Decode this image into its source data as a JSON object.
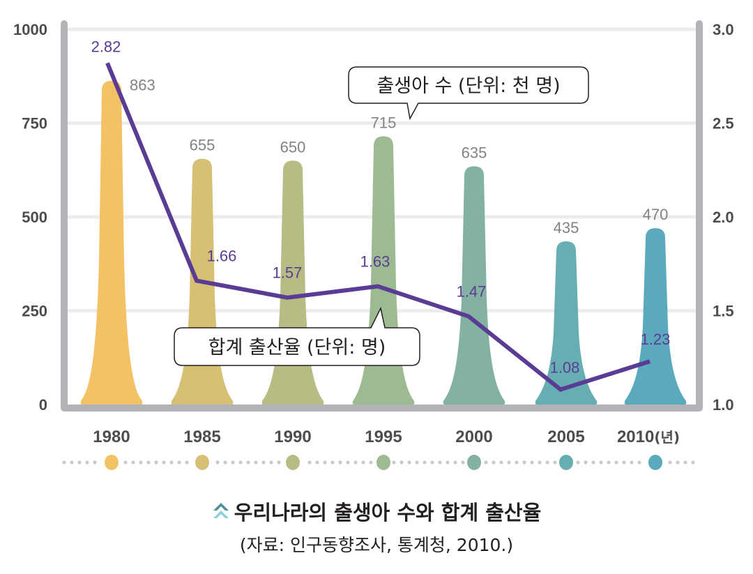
{
  "chart_data": {
    "type": "bar+line",
    "title": "우리나라의 출생아 수와 합계 출산율",
    "source": "(자료: 인구동향조사, 통계청, 2010.)",
    "categories": [
      "1980",
      "1985",
      "1990",
      "1995",
      "2000",
      "2005",
      "2010"
    ],
    "x_unit_suffix": "(년)",
    "series": [
      {
        "name": "출생아 수 (단위: 천 명)",
        "type": "bar",
        "axis": "left",
        "values": [
          863,
          655,
          650,
          715,
          635,
          435,
          470
        ],
        "colors": [
          "#f3c264",
          "#d7bf74",
          "#b7bb84",
          "#9dba93",
          "#84b2a2",
          "#67aeb3",
          "#5aa9bc"
        ]
      },
      {
        "name": "합계 출산율 (단위: 명)",
        "type": "line",
        "axis": "right",
        "values": [
          2.82,
          1.66,
          1.57,
          1.63,
          1.47,
          1.08,
          1.23
        ],
        "color": "#5b3c94"
      }
    ],
    "y_left": {
      "range": [
        0,
        1000
      ],
      "ticks": [
        "0",
        "250",
        "500",
        "750",
        "1000"
      ],
      "tick_values": [
        0,
        250,
        500,
        750,
        1000
      ]
    },
    "y_right": {
      "range": [
        1.0,
        3.0
      ],
      "ticks": [
        "1.0",
        "1.5",
        "2.0",
        "2.5",
        "3.0"
      ],
      "tick_values": [
        1.0,
        1.5,
        2.0,
        2.5,
        3.0
      ]
    },
    "grid": true,
    "callouts": {
      "bar": "출생아 수 (단위: 천 명)",
      "line": "합계 출산율 (단위: 명)"
    },
    "timeline_dot_colors": [
      "#f3c264",
      "#d7bf74",
      "#b7bb84",
      "#9dba93",
      "#84b2a2",
      "#67aeb3",
      "#5aa9bc"
    ]
  },
  "colors": {
    "axis": "#b1b3b6",
    "grid": "#ececec",
    "line": "#5b3c94",
    "icon_dark": "#4f8f97",
    "icon_light": "#8ccfd6"
  }
}
